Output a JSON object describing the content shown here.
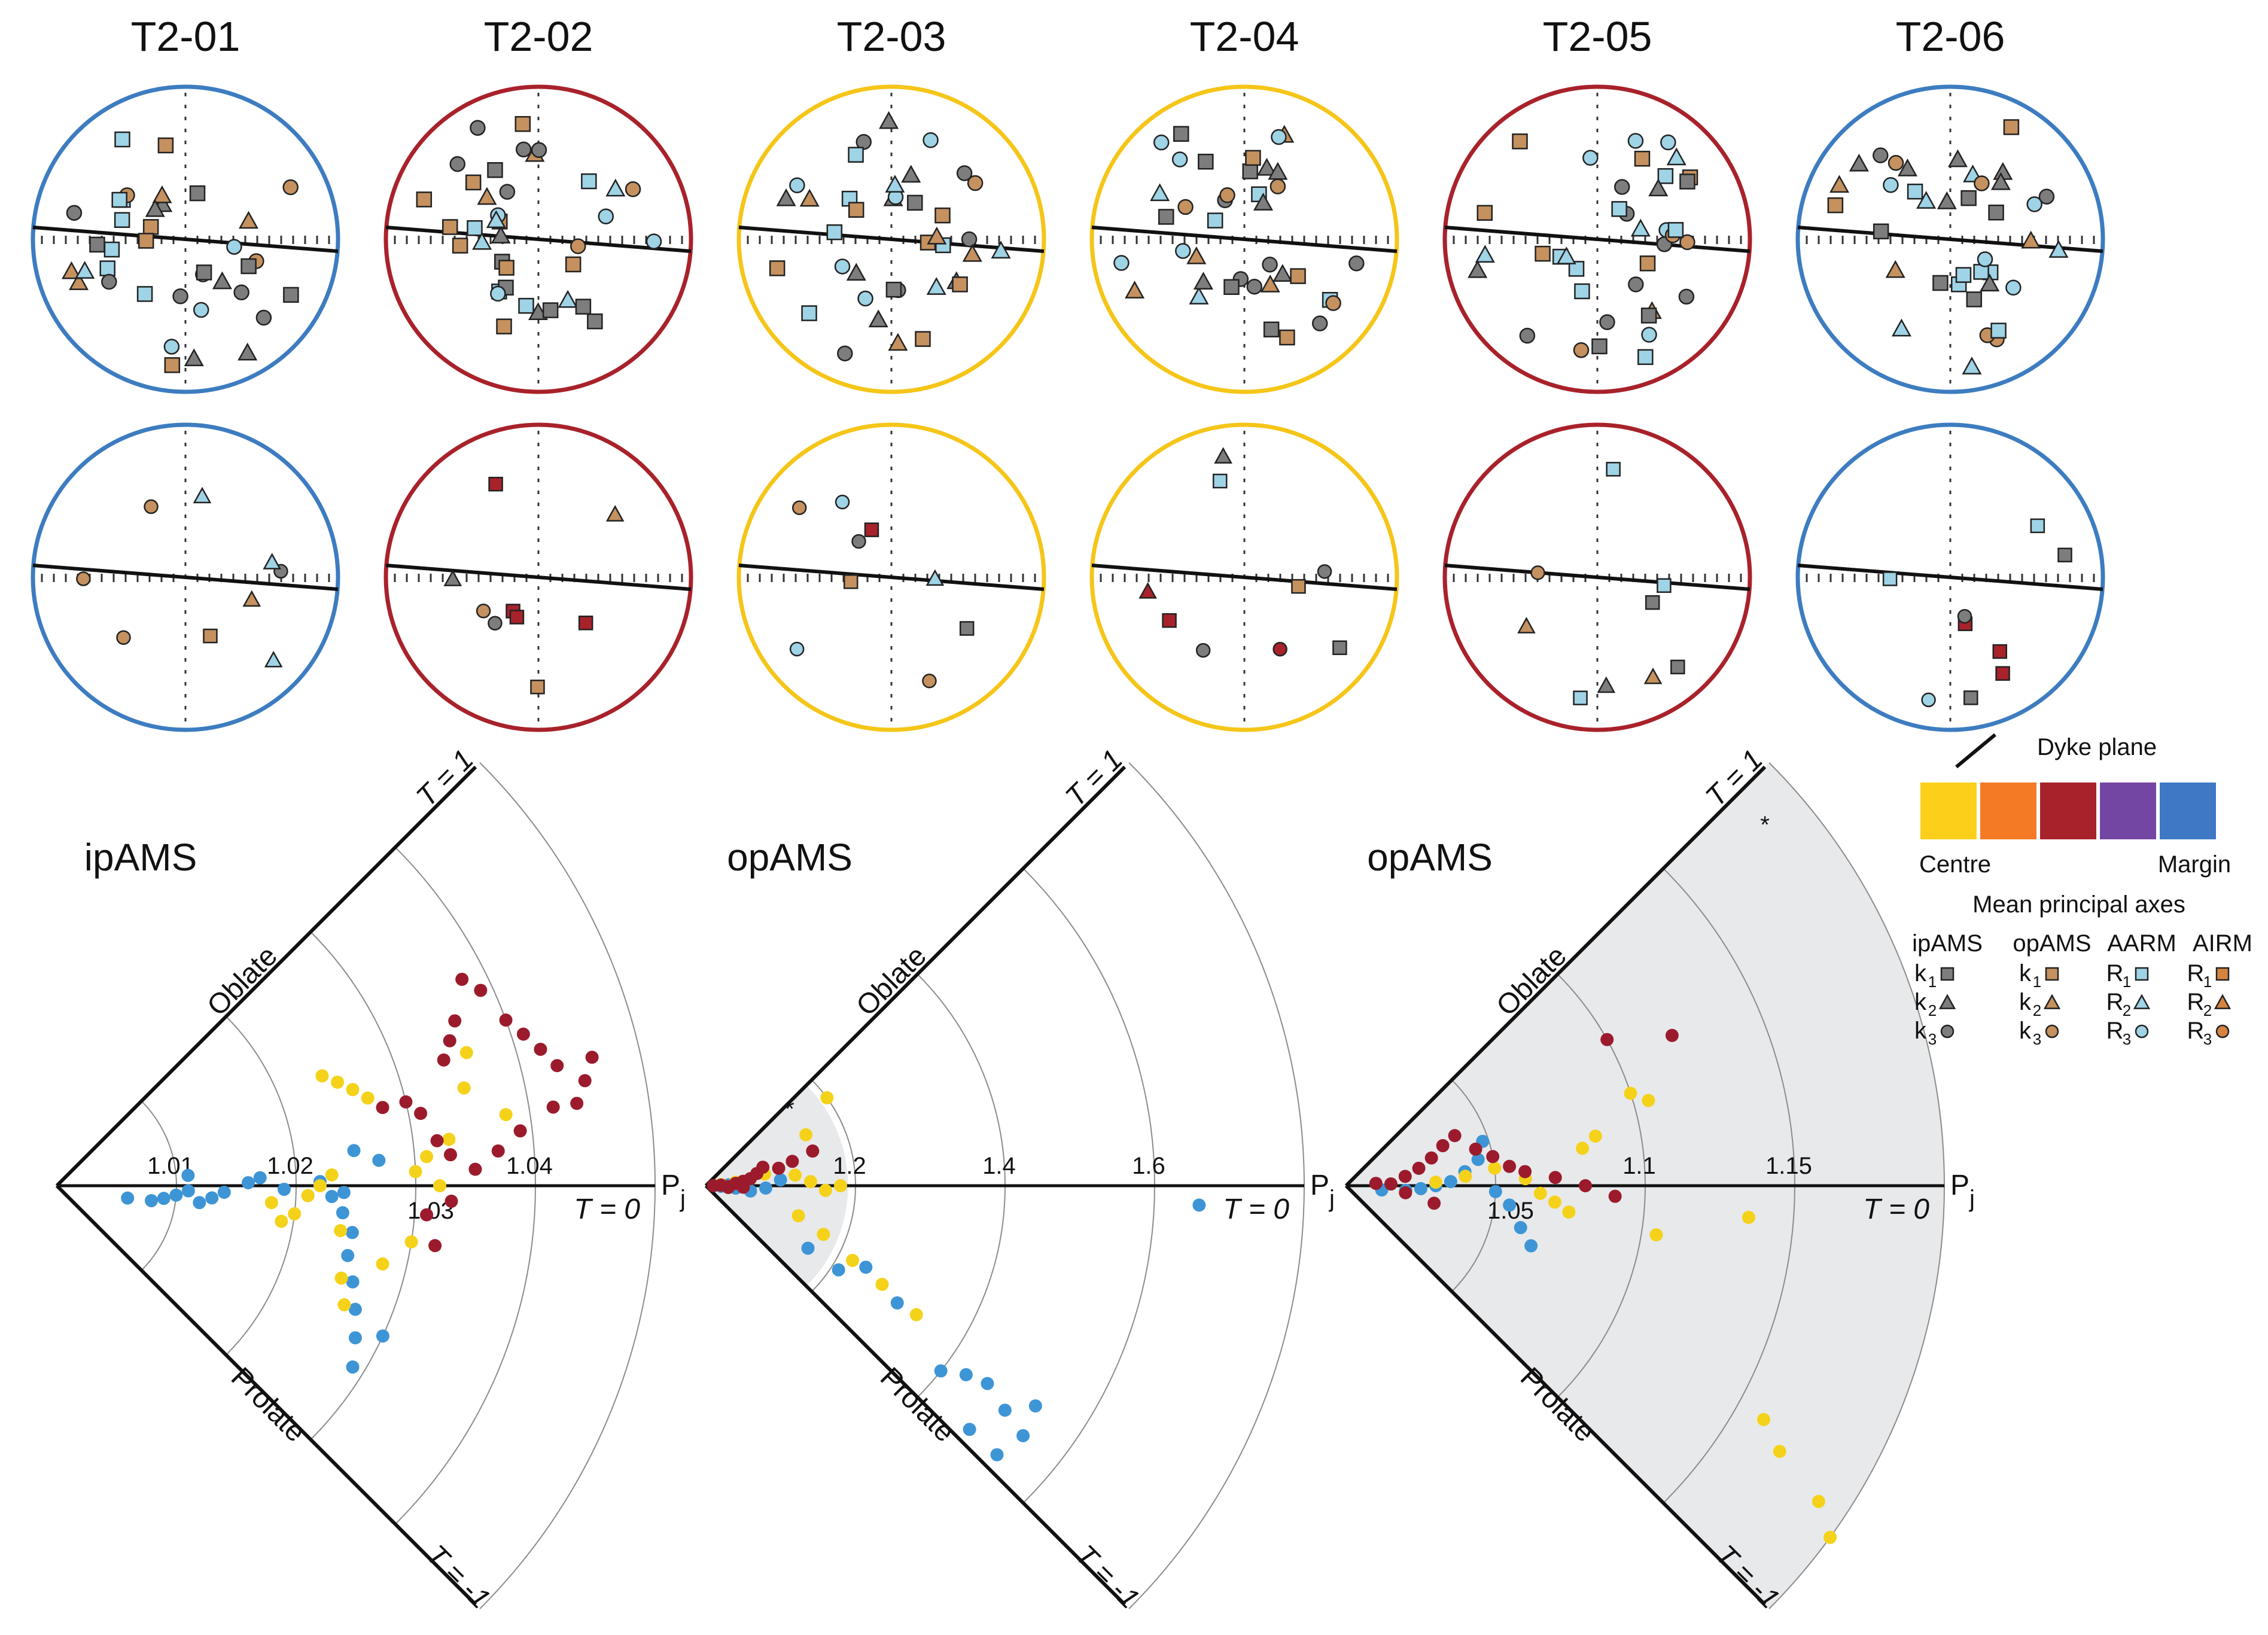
{
  "figure": {
    "sites": [
      {
        "id": "T2-01",
        "color": "#3d7cc0"
      },
      {
        "id": "T2-02",
        "color": "#a8222b"
      },
      {
        "id": "T2-03",
        "color": "#f5c518"
      },
      {
        "id": "T2-04",
        "color": "#f5c518"
      },
      {
        "id": "T2-05",
        "color": "#a8222b"
      },
      {
        "id": "T2-06",
        "color": "#3d7cc0"
      }
    ],
    "colors": {
      "centre": "#fccf1b",
      "orange": "#f47a26",
      "red": "#a8222b",
      "purple": "#7446a4",
      "margin": "#3f78c5",
      "ipams": "#7d7d7d",
      "opams": "#c5915f",
      "aarm": "#9fd3e6",
      "airm": "#d4843e",
      "point_yellow": "#f5d21a",
      "point_red": "#9b1b2d",
      "point_blue": "#3d95d6"
    },
    "symbols": {
      "square": "square-marker",
      "triangle": "triangle-marker",
      "circle": "circle-marker"
    }
  },
  "legend": {
    "dyke_plane": "Dyke plane",
    "centre": "Centre",
    "margin": "Margin",
    "mean_axes": "Mean principal axes",
    "columns": [
      "ipAMS",
      "opAMS",
      "AARM",
      "AIRM"
    ],
    "rows": [
      [
        "k1",
        "k1",
        "R1",
        "R1"
      ],
      [
        "k2",
        "k2",
        "R2",
        "R2"
      ],
      [
        "k3",
        "k3",
        "R3",
        "R3"
      ]
    ]
  },
  "jelinek_plots": {
    "labels": {
      "t_top": "T = 1",
      "t_mid": "T = 0",
      "t_bottom": "T = -1",
      "oblate": "Oblate",
      "prolate": "Prolate",
      "pj": "P",
      "pj_sub": "j",
      "star": "*"
    },
    "panels": [
      {
        "title": "ipAMS",
        "ticks": [
          "1.01",
          "1.02",
          "1.03",
          "1.04"
        ]
      },
      {
        "title": "opAMS",
        "ticks": [
          "1.2",
          "1.4",
          "1.6"
        ]
      },
      {
        "title": "opAMS",
        "ticks": [
          "1.05",
          "1.1",
          "1.15"
        ]
      }
    ]
  },
  "chart_data": [
    {
      "type": "scatter",
      "title": "ipAMS",
      "xlabel": "Pj",
      "ylabel": "T",
      "xlim": [
        1.0,
        1.05
      ],
      "ylim": [
        -1,
        1
      ],
      "series": [
        {
          "name": "Margin",
          "color": "#3d95d6",
          "points": [
            [
              1.006,
              -0.22
            ],
            [
              1.008,
              -0.2
            ],
            [
              1.009,
              -0.15
            ],
            [
              1.01,
              -0.1
            ],
            [
              1.011,
              -0.05
            ],
            [
              1.012,
              -0.15
            ],
            [
              1.013,
              -0.1
            ],
            [
              1.014,
              -0.05
            ],
            [
              1.011,
              0.1
            ],
            [
              1.016,
              0.02
            ],
            [
              1.017,
              0.05
            ],
            [
              1.019,
              -0.02
            ],
            [
              1.021,
              -0.05
            ],
            [
              1.022,
              0.02
            ],
            [
              1.024,
              -0.03
            ],
            [
              1.023,
              -0.05
            ],
            [
              1.024,
              -0.12
            ],
            [
              1.025,
              -0.2
            ],
            [
              1.025,
              -0.3
            ],
            [
              1.026,
              -0.4
            ],
            [
              1.027,
              -0.5
            ],
            [
              1.028,
              -0.6
            ],
            [
              1.029,
              -0.7
            ],
            [
              1.03,
              -0.55
            ],
            [
              1.027,
              0.1
            ],
            [
              1.025,
              0.15
            ]
          ]
        },
        {
          "name": "Centre",
          "color": "#f5d21a",
          "points": [
            [
              1.024,
              0.5
            ],
            [
              1.025,
              0.45
            ],
            [
              1.026,
              0.4
            ],
            [
              1.027,
              0.35
            ],
            [
              1.028,
              0.3
            ],
            [
              1.018,
              -0.1
            ],
            [
              1.019,
              -0.2
            ],
            [
              1.02,
              -0.15
            ],
            [
              1.021,
              -0.05
            ],
            [
              1.022,
              0.0
            ],
            [
              1.023,
              0.05
            ],
            [
              1.024,
              -0.2
            ],
            [
              1.025,
              -0.4
            ],
            [
              1.026,
              -0.5
            ],
            [
              1.028,
              -0.3
            ],
            [
              1.03,
              -0.2
            ],
            [
              1.03,
              0.05
            ],
            [
              1.031,
              0.1
            ],
            [
              1.032,
              0.0
            ],
            [
              1.033,
              0.15
            ],
            [
              1.035,
              0.3
            ],
            [
              1.036,
              0.4
            ],
            [
              1.038,
              0.2
            ]
          ]
        },
        {
          "name": "Red",
          "color": "#9b1b2d",
          "points": [
            [
              1.028,
              0.3
            ],
            [
              1.03,
              0.3
            ],
            [
              1.031,
              0.25
            ],
            [
              1.032,
              0.15
            ],
            [
              1.033,
              0.1
            ],
            [
              1.034,
              0.4
            ],
            [
              1.035,
              0.45
            ],
            [
              1.036,
              0.5
            ],
            [
              1.038,
              0.6
            ],
            [
              1.039,
              0.55
            ],
            [
              1.04,
              0.45
            ],
            [
              1.041,
              0.4
            ],
            [
              1.042,
              0.35
            ],
            [
              1.043,
              0.3
            ],
            [
              1.045,
              0.25
            ],
            [
              1.044,
              0.2
            ],
            [
              1.031,
              -0.1
            ],
            [
              1.032,
              -0.2
            ],
            [
              1.033,
              -0.05
            ],
            [
              1.035,
              0.05
            ],
            [
              1.037,
              0.1
            ],
            [
              1.039,
              0.15
            ],
            [
              1.042,
              0.2
            ],
            [
              1.046,
              0.3
            ]
          ]
        }
      ]
    },
    {
      "type": "scatter",
      "title": "opAMS",
      "xlabel": "Pj",
      "ylabel": "T",
      "xlim": [
        1.0,
        1.8
      ],
      "ylim": [
        -1,
        1
      ],
      "series": [
        {
          "name": "Margin",
          "color": "#3d95d6",
          "points": [
            [
              1.02,
              -0.05
            ],
            [
              1.03,
              0.05
            ],
            [
              1.04,
              -0.1
            ],
            [
              1.05,
              0.0
            ],
            [
              1.06,
              -0.15
            ],
            [
              1.08,
              -0.05
            ],
            [
              1.1,
              0.1
            ],
            [
              1.16,
              -0.7
            ],
            [
              1.21,
              -0.72
            ],
            [
              1.24,
              -0.6
            ],
            [
              1.3,
              -0.7
            ],
            [
              1.4,
              -0.85
            ],
            [
              1.43,
              -0.8
            ],
            [
              1.46,
              -0.78
            ],
            [
              1.5,
              -0.82
            ],
            [
              1.53,
              -0.75
            ],
            [
              1.54,
              -0.85
            ],
            [
              1.48,
              -0.95
            ],
            [
              1.53,
              -0.95
            ],
            [
              1.66,
              -0.05
            ]
          ]
        },
        {
          "name": "Centre",
          "color": "#f5d21a",
          "points": [
            [
              1.02,
              0.1
            ],
            [
              1.04,
              0.15
            ],
            [
              1.06,
              0.2
            ],
            [
              1.08,
              0.25
            ],
            [
              1.1,
              0.3
            ],
            [
              1.12,
              0.15
            ],
            [
              1.14,
              0.05
            ],
            [
              1.16,
              -0.05
            ],
            [
              1.18,
              0.0
            ],
            [
              1.2,
              0.8
            ],
            [
              1.15,
              0.6
            ],
            [
              1.13,
              -0.4
            ],
            [
              1.17,
              -0.5
            ],
            [
              1.22,
              -0.6
            ],
            [
              1.27,
              -0.65
            ],
            [
              1.33,
              -0.7
            ]
          ]
        },
        {
          "name": "Red",
          "color": "#9b1b2d",
          "points": [
            [
              1.01,
              0.0
            ],
            [
              1.02,
              0.05
            ],
            [
              1.03,
              -0.05
            ],
            [
              1.04,
              0.1
            ],
            [
              1.05,
              0.15
            ],
            [
              1.06,
              0.2
            ],
            [
              1.07,
              0.3
            ],
            [
              1.08,
              0.4
            ],
            [
              1.1,
              0.3
            ],
            [
              1.12,
              0.35
            ],
            [
              1.15,
              0.4
            ],
            [
              1.03,
              -0.1
            ],
            [
              1.05,
              -0.05
            ]
          ]
        }
      ]
    },
    {
      "type": "scatter",
      "title": "opAMS",
      "xlabel": "Pj",
      "ylabel": "T",
      "xlim": [
        1.0,
        1.2
      ],
      "ylim": [
        -1,
        1
      ],
      "series": [
        {
          "name": "Margin",
          "color": "#3d95d6",
          "points": [
            [
              1.012,
              -0.15
            ],
            [
              1.02,
              -0.1
            ],
            [
              1.025,
              -0.05
            ],
            [
              1.03,
              0.0
            ],
            [
              1.035,
              0.05
            ],
            [
              1.04,
              0.15
            ],
            [
              1.045,
              0.25
            ],
            [
              1.05,
              -0.05
            ],
            [
              1.055,
              -0.15
            ],
            [
              1.06,
              -0.3
            ],
            [
              1.065,
              -0.4
            ],
            [
              1.048,
              0.4
            ]
          ]
        },
        {
          "name": "Centre",
          "color": "#f5d21a",
          "points": [
            [
              1.03,
              0.05
            ],
            [
              1.04,
              0.1
            ],
            [
              1.05,
              0.15
            ],
            [
              1.06,
              0.05
            ],
            [
              1.065,
              -0.05
            ],
            [
              1.07,
              -0.1
            ],
            [
              1.075,
              -0.15
            ],
            [
              1.08,
              0.2
            ],
            [
              1.085,
              0.25
            ],
            [
              1.1,
              0.4
            ],
            [
              1.105,
              -0.2
            ],
            [
              1.135,
              -0.1
            ],
            [
              1.16,
              -0.65
            ],
            [
              1.17,
              -0.7
            ],
            [
              1.19,
              -0.75
            ],
            [
              1.2,
              -0.8
            ],
            [
              1.105,
              0.35
            ]
          ]
        },
        {
          "name": "Red",
          "color": "#9b1b2d",
          "points": [
            [
              1.01,
              0.1
            ],
            [
              1.015,
              0.05
            ],
            [
              1.02,
              0.2
            ],
            [
              1.025,
              0.3
            ],
            [
              1.03,
              0.4
            ],
            [
              1.035,
              0.5
            ],
            [
              1.04,
              0.55
            ],
            [
              1.045,
              0.35
            ],
            [
              1.05,
              0.25
            ],
            [
              1.055,
              0.15
            ],
            [
              1.06,
              0.1
            ],
            [
              1.07,
              0.05
            ],
            [
              1.08,
              0.0
            ],
            [
              1.09,
              -0.05
            ],
            [
              1.1,
              0.65
            ],
            [
              1.12,
              0.55
            ],
            [
              1.02,
              -0.15
            ],
            [
              1.03,
              -0.25
            ]
          ]
        }
      ]
    }
  ]
}
